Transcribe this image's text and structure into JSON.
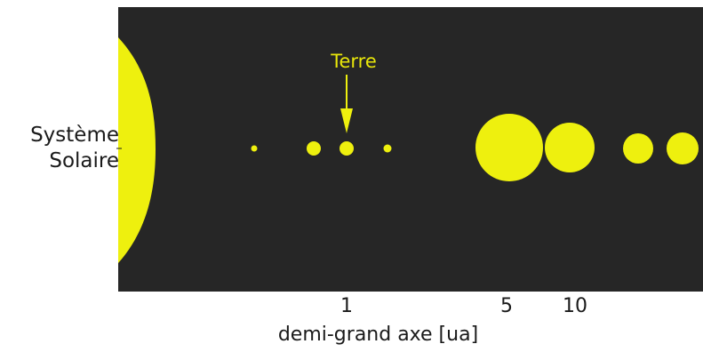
{
  "labels": {
    "system_line1": "Système",
    "system_line2": "Solaire",
    "earth": "Terre",
    "xaxis": "demi-grand axe [ua]"
  },
  "ticks": [
    {
      "label": "1",
      "value": 1
    },
    {
      "label": "5",
      "value": 5
    },
    {
      "label": "10",
      "value": 10
    }
  ],
  "planets": [
    {
      "a": 0.39,
      "size": "tiny"
    },
    {
      "a": 0.72,
      "size": "small"
    },
    {
      "a": 1.0,
      "size": "small"
    },
    {
      "a": 1.52,
      "size": "tiny"
    },
    {
      "a": 5.2,
      "size": "giant"
    },
    {
      "a": 9.58,
      "size": "large"
    },
    {
      "a": 19.2,
      "size": "medium"
    },
    {
      "a": 30.1,
      "size": "medium"
    }
  ],
  "colors": {
    "background": "#262626",
    "body": "#eef00e",
    "text": "#1a1a1a"
  }
}
